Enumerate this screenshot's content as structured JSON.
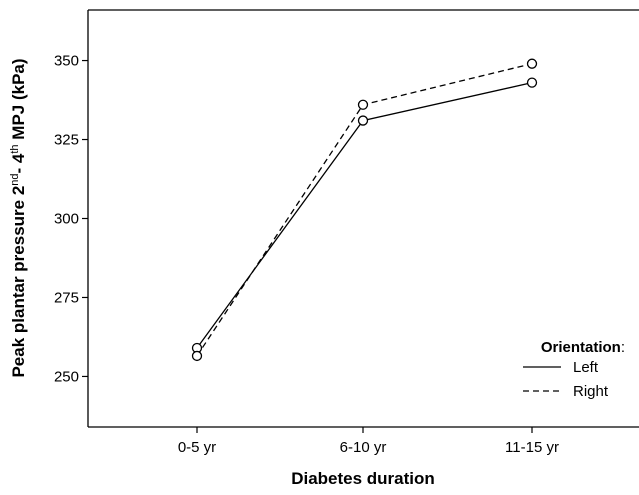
{
  "chart_data": {
    "type": "line",
    "title": "",
    "categories": [
      "0-5 yr",
      "6-10 yr",
      "11-15 yr"
    ],
    "xlabel": "Diabetes duration",
    "ylabel": {
      "main": "Peak plantar pressure 2",
      "sup1": "nd",
      "mid": "- 4",
      "sup2": "th",
      "end": " MPJ (kPa)"
    },
    "ylim": [
      234,
      366
    ],
    "yticks": [
      250,
      275,
      300,
      325,
      350
    ],
    "series": [
      {
        "name": "Left",
        "values": [
          259,
          331,
          343
        ],
        "dash": "solid"
      },
      {
        "name": "Right",
        "values": [
          256.5,
          336,
          349
        ],
        "dash": "dashed"
      }
    ],
    "legend": {
      "title": "Orientation",
      "title_suffix": ":",
      "placement": "bottom-right"
    },
    "grid": false,
    "colors": {
      "line": "#000000",
      "marker_fill": "#ffffff",
      "background": "#ffffff"
    },
    "marker": "open-circle"
  }
}
